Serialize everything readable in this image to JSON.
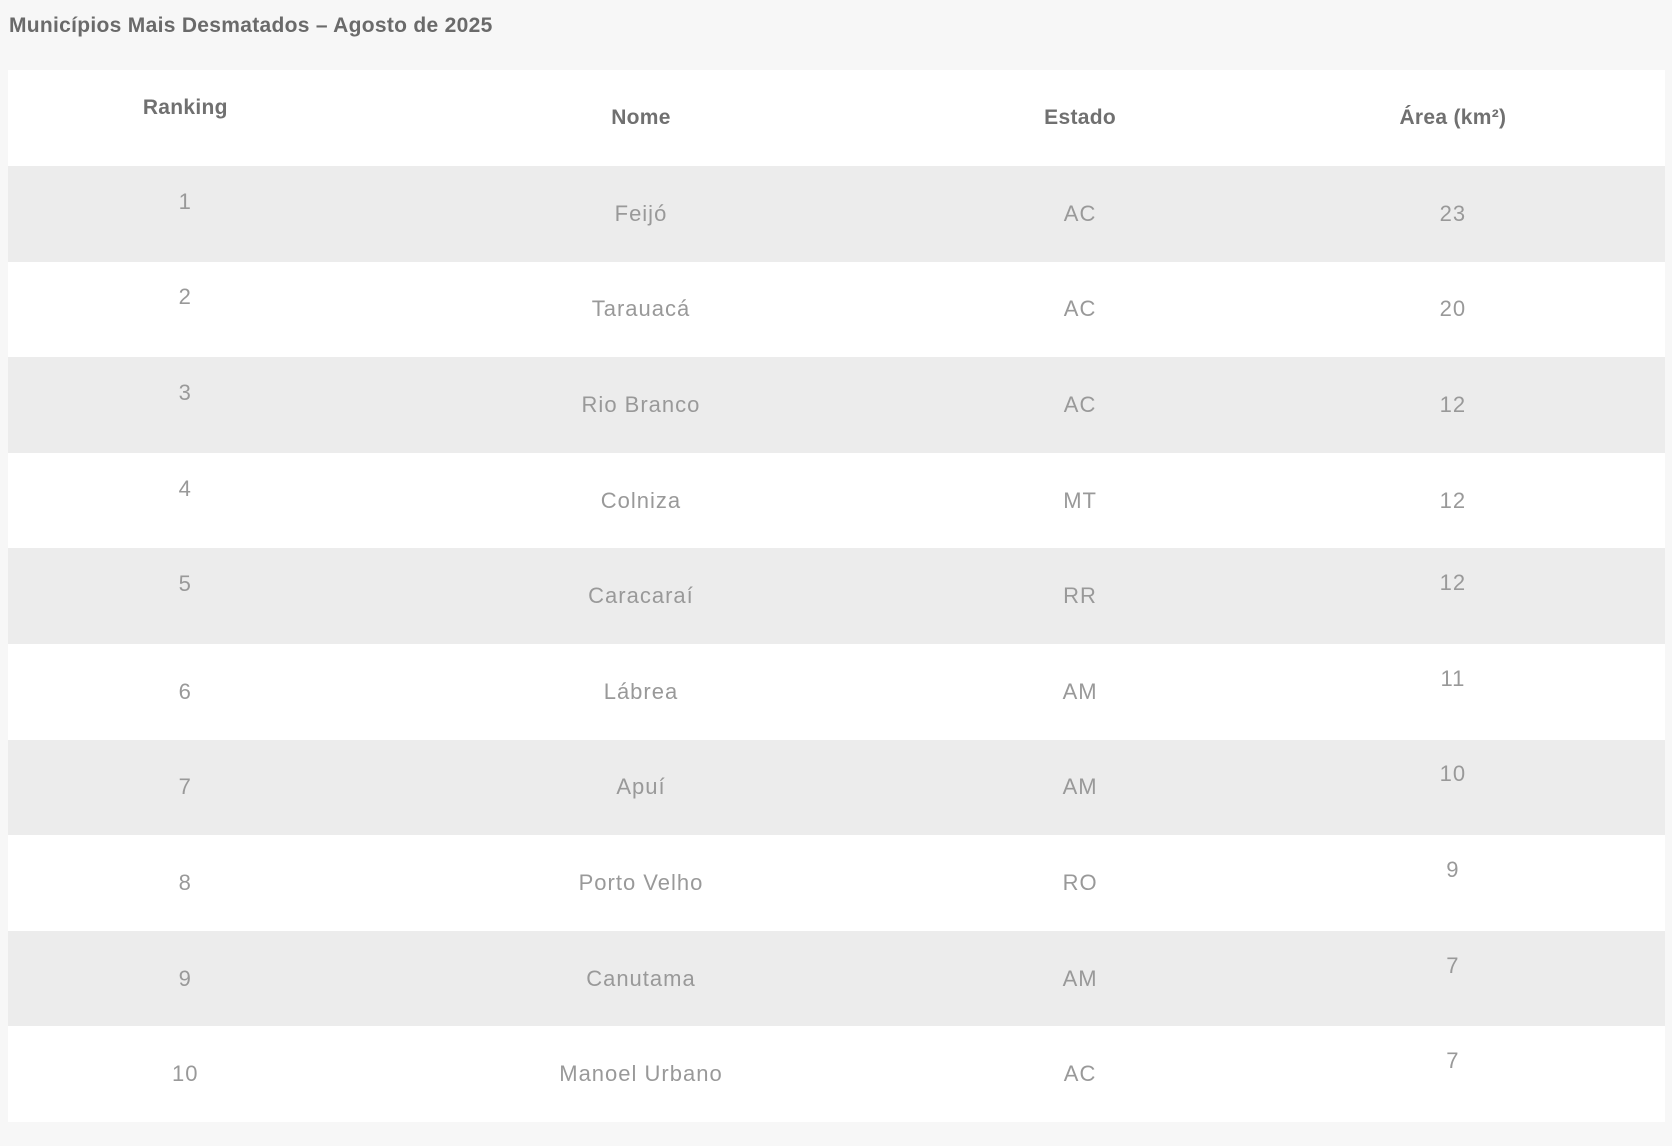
{
  "title": "Municípios Mais Desmatados – Agosto de 2025",
  "colors": {
    "page_bg": "#f7f7f7",
    "row_bg": "#ffffff",
    "row_alt_bg": "#ececec",
    "title_text": "#6a6a6a",
    "header_text": "#707070",
    "body_text": "#999999"
  },
  "chart_data": {
    "type": "table",
    "title": "Municípios Mais Desmatados – Agosto de 2025",
    "columns": [
      "Ranking",
      "Nome",
      "Estado",
      "Área (km²)"
    ],
    "rows": [
      {
        "ranking": "1",
        "nome": "Feijó",
        "estado": "AC",
        "area": "23"
      },
      {
        "ranking": "2",
        "nome": "Tarauacá",
        "estado": "AC",
        "area": "20"
      },
      {
        "ranking": "3",
        "nome": "Rio Branco",
        "estado": "AC",
        "area": "12"
      },
      {
        "ranking": "4",
        "nome": "Colniza",
        "estado": "MT",
        "area": "12"
      },
      {
        "ranking": "5",
        "nome": "Caracaraí",
        "estado": "RR",
        "area": "12"
      },
      {
        "ranking": "6",
        "nome": "Lábrea",
        "estado": "AM",
        "area": "11"
      },
      {
        "ranking": "7",
        "nome": "Apuí",
        "estado": "AM",
        "area": "10"
      },
      {
        "ranking": "8",
        "nome": "Porto Velho",
        "estado": "RO",
        "area": "9"
      },
      {
        "ranking": "9",
        "nome": "Canutama",
        "estado": "AM",
        "area": "7"
      },
      {
        "ranking": "10",
        "nome": "Manoel Urbano",
        "estado": "AC",
        "area": "7"
      }
    ]
  }
}
